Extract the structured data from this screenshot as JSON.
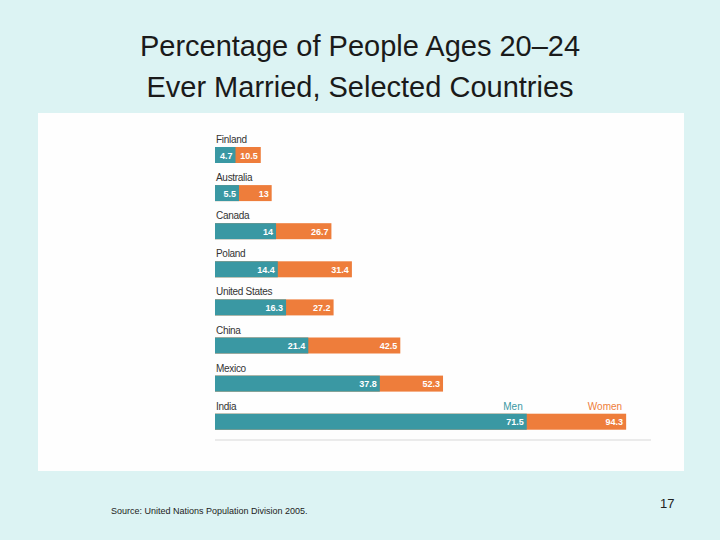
{
  "chart_data": {
    "type": "bar",
    "orientation": "horizontal",
    "title": "Percentage of People Ages 20–24\nEver Married, Selected Countries",
    "categories": [
      "Finland",
      "Australia",
      "Canada",
      "Poland",
      "United States",
      "China",
      "Mexico",
      "India"
    ],
    "series": [
      {
        "name": "Men",
        "color": "#3a98a3",
        "values": [
          4.7,
          5.5,
          14,
          14.4,
          16.3,
          21.4,
          37.8,
          71.5
        ]
      },
      {
        "name": "Women",
        "color": "#ee7d3b",
        "values": [
          10.5,
          13,
          26.7,
          31.4,
          27.2,
          42.5,
          52.3,
          94.3
        ]
      }
    ],
    "xlim": [
      0,
      100
    ],
    "tick_labels": false,
    "grid": false,
    "data_labels": true,
    "stacked": false,
    "source": "Source: United Nations Population Division 2005."
  },
  "slide": {
    "number": "17"
  }
}
